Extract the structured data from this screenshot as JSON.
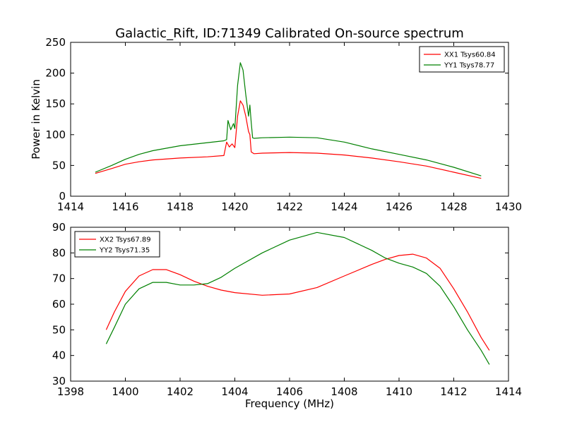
{
  "figure": {
    "title": "Galactic_Rift, ID:71349 Calibrated On-source spectrum",
    "ylabel": "Power in Kelvin",
    "xlabel": "Frequency (MHz)"
  },
  "chart_data": [
    {
      "type": "line",
      "xlim": [
        1414,
        1430
      ],
      "ylim": [
        0,
        250
      ],
      "xticks": [
        1414,
        1416,
        1418,
        1420,
        1422,
        1424,
        1426,
        1428,
        1430
      ],
      "yticks": [
        0,
        50,
        100,
        150,
        200,
        250
      ],
      "legend_position": "top-right",
      "series": [
        {
          "name": "XX1 Tsys60.84",
          "color": "#ff0000",
          "x": [
            1414.9,
            1415.5,
            1416,
            1416.5,
            1417,
            1418,
            1419,
            1419.6,
            1419.7,
            1419.8,
            1419.9,
            1420.0,
            1420.1,
            1420.2,
            1420.3,
            1420.4,
            1420.5,
            1420.55,
            1420.6,
            1420.7,
            1421,
            1422,
            1423,
            1424,
            1425,
            1426,
            1427,
            1428,
            1429
          ],
          "y": [
            37,
            45,
            52,
            56,
            59,
            62,
            64,
            66,
            88,
            80,
            85,
            79,
            130,
            155,
            148,
            130,
            105,
            100,
            72,
            69,
            70,
            71,
            70,
            67,
            62,
            56,
            49,
            39,
            29
          ]
        },
        {
          "name": "YY1 Tsys78.77",
          "color": "#008000",
          "x": [
            1414.9,
            1415.5,
            1416,
            1416.5,
            1417,
            1418,
            1419,
            1419.6,
            1419.7,
            1419.75,
            1419.85,
            1419.95,
            1420.0,
            1420.1,
            1420.2,
            1420.3,
            1420.4,
            1420.5,
            1420.55,
            1420.6,
            1420.65,
            1420.7,
            1421,
            1422,
            1423,
            1424,
            1425,
            1426,
            1427,
            1428,
            1429
          ],
          "y": [
            39,
            50,
            60,
            68,
            74,
            82,
            87,
            90,
            92,
            123,
            108,
            118,
            110,
            180,
            217,
            205,
            165,
            130,
            148,
            120,
            95,
            94,
            95,
            96,
            95,
            88,
            77,
            68,
            59,
            47,
            33
          ]
        }
      ]
    },
    {
      "type": "line",
      "xlim": [
        1398,
        1414
      ],
      "ylim": [
        30,
        90
      ],
      "xticks": [
        1398,
        1400,
        1402,
        1404,
        1406,
        1408,
        1410,
        1412,
        1414
      ],
      "yticks": [
        30,
        40,
        50,
        60,
        70,
        80,
        90
      ],
      "legend_position": "top-left",
      "series": [
        {
          "name": "XX2 Tsys67.89",
          "color": "#ff0000",
          "x": [
            1399.3,
            1399.6,
            1400,
            1400.5,
            1401,
            1401.5,
            1402,
            1402.5,
            1403,
            1403.5,
            1404,
            1405,
            1406,
            1407,
            1408,
            1409,
            1409.5,
            1410,
            1410.5,
            1411,
            1411.5,
            1412,
            1412.5,
            1413,
            1413.3
          ],
          "y": [
            50,
            57,
            65,
            71,
            73.5,
            73.5,
            71.5,
            69,
            67,
            65.5,
            64.5,
            63.5,
            64,
            66.5,
            71,
            75.5,
            77.5,
            79,
            79.5,
            78,
            74,
            66,
            57,
            47,
            42
          ]
        },
        {
          "name": "YY2 Tsys71.35",
          "color": "#008000",
          "x": [
            1399.3,
            1399.6,
            1400,
            1400.5,
            1401,
            1401.5,
            1402,
            1402.5,
            1403,
            1403.5,
            1404,
            1405,
            1406,
            1407,
            1408,
            1409,
            1409.5,
            1410,
            1410.5,
            1411,
            1411.5,
            1412,
            1412.5,
            1413,
            1413.3
          ],
          "y": [
            44.5,
            51,
            60,
            66,
            68.5,
            68.5,
            67.5,
            67.5,
            68,
            70.5,
            74,
            80,
            85,
            88,
            86,
            81,
            78,
            76,
            74.5,
            72,
            67,
            59,
            50,
            42,
            36.5
          ]
        }
      ]
    }
  ]
}
